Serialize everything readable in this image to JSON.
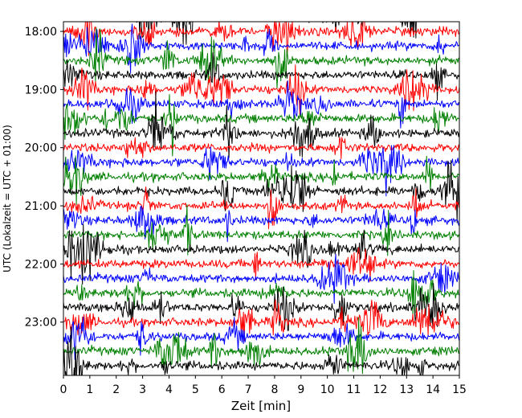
{
  "chart_data": {
    "type": "line",
    "title": "",
    "xlabel": "Zeit  [min]",
    "ylabel": "UTC (Lokalzeit = UTC + 01:00)",
    "xlim": [
      0,
      15
    ],
    "x_ticks": [
      "0",
      "1",
      "2",
      "3",
      "4",
      "5",
      "6",
      "7",
      "8",
      "9",
      "10",
      "11",
      "12",
      "13",
      "14",
      "15"
    ],
    "y_ticks": [
      "18:00",
      "19:00",
      "20:00",
      "21:00",
      "22:00",
      "23:00"
    ],
    "ylim": [
      "17:50",
      "23:55"
    ],
    "trace_interval_minutes": 15,
    "first_trace": "17:45",
    "last_trace": "23:45",
    "color_cycle": [
      "#000000",
      "#ff0000",
      "#0000ff",
      "#008000"
    ],
    "grid": false,
    "legend": "none"
  }
}
